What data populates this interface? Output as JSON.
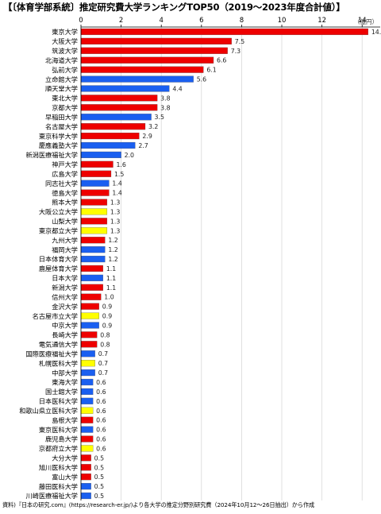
{
  "title": "【〔体育学部系統〕推定研究費大学ランキングTOP50（2019〜2023年度合計値）】",
  "unit": "（億円）",
  "source": "資料)『日本の研究.com』(https://research-er.jp/)より各大学の推定分野別研究費（2024年10月12〜26日抽出）から作成",
  "colors": {
    "national": "#ee0000",
    "private": "#1a5ff0",
    "public": "#ffff00",
    "axis": "#000000",
    "grid": "#d9d9d9"
  },
  "chart_data": {
    "type": "bar",
    "orientation": "horizontal",
    "x_ticks": [
      0,
      2,
      4,
      6,
      8,
      10,
      12,
      14
    ],
    "xlim": [
      0,
      14.9
    ],
    "grid": true,
    "bars": [
      {
        "label": "東京大学",
        "value": 14.3,
        "value_label": "14.3",
        "type": "national"
      },
      {
        "label": "大阪大学",
        "value": 7.5,
        "value_label": "7.5",
        "type": "national"
      },
      {
        "label": "筑波大学",
        "value": 7.3,
        "value_label": "7.3",
        "type": "national"
      },
      {
        "label": "北海道大学",
        "value": 6.6,
        "value_label": "6.6",
        "type": "national"
      },
      {
        "label": "弘前大学",
        "value": 6.1,
        "value_label": "6.1",
        "type": "national"
      },
      {
        "label": "立命館大学",
        "value": 5.6,
        "value_label": "5.6",
        "type": "private"
      },
      {
        "label": "順天堂大学",
        "value": 4.4,
        "value_label": "4.4",
        "type": "private"
      },
      {
        "label": "東北大学",
        "value": 3.8,
        "value_label": "3.8",
        "type": "national"
      },
      {
        "label": "京都大学",
        "value": 3.8,
        "value_label": "3.8",
        "type": "national"
      },
      {
        "label": "早稲田大学",
        "value": 3.5,
        "value_label": "3.5",
        "type": "private"
      },
      {
        "label": "名古屋大学",
        "value": 3.2,
        "value_label": "3.2",
        "type": "national"
      },
      {
        "label": "東京科学大学",
        "value": 2.9,
        "value_label": "2.9",
        "type": "national"
      },
      {
        "label": "慶應義塾大学",
        "value": 2.7,
        "value_label": "2.7",
        "type": "private"
      },
      {
        "label": "新潟医療福祉大学",
        "value": 2.0,
        "value_label": "2.0",
        "type": "private"
      },
      {
        "label": "神戸大学",
        "value": 1.6,
        "value_label": "1.6",
        "type": "national"
      },
      {
        "label": "広島大学",
        "value": 1.5,
        "value_label": "1.5",
        "type": "national"
      },
      {
        "label": "同志社大学",
        "value": 1.4,
        "value_label": "1.4",
        "type": "private"
      },
      {
        "label": "徳島大学",
        "value": 1.4,
        "value_label": "1.4",
        "type": "national"
      },
      {
        "label": "熊本大学",
        "value": 1.3,
        "value_label": "1.3",
        "type": "national"
      },
      {
        "label": "大阪公立大学",
        "value": 1.3,
        "value_label": "1.3",
        "type": "public"
      },
      {
        "label": "山梨大学",
        "value": 1.3,
        "value_label": "1.3",
        "type": "national"
      },
      {
        "label": "東京都立大学",
        "value": 1.3,
        "value_label": "1.3",
        "type": "public"
      },
      {
        "label": "九州大学",
        "value": 1.2,
        "value_label": "1.2",
        "type": "national"
      },
      {
        "label": "福岡大学",
        "value": 1.2,
        "value_label": "1.2",
        "type": "private"
      },
      {
        "label": "日本体育大学",
        "value": 1.2,
        "value_label": "1.2",
        "type": "private"
      },
      {
        "label": "鹿屋体育大学",
        "value": 1.1,
        "value_label": "1.1",
        "type": "national"
      },
      {
        "label": "日本大学",
        "value": 1.1,
        "value_label": "1.1",
        "type": "private"
      },
      {
        "label": "新潟大学",
        "value": 1.1,
        "value_label": "1.1",
        "type": "national"
      },
      {
        "label": "信州大学",
        "value": 1.0,
        "value_label": "1.0",
        "type": "national"
      },
      {
        "label": "金沢大学",
        "value": 0.9,
        "value_label": "0.9",
        "type": "national"
      },
      {
        "label": "名古屋市立大学",
        "value": 0.9,
        "value_label": "0.9",
        "type": "public"
      },
      {
        "label": "中京大学",
        "value": 0.9,
        "value_label": "0.9",
        "type": "private"
      },
      {
        "label": "長崎大学",
        "value": 0.8,
        "value_label": "0.8",
        "type": "national"
      },
      {
        "label": "電気通信大学",
        "value": 0.8,
        "value_label": "0.8",
        "type": "national"
      },
      {
        "label": "国際医療福祉大学",
        "value": 0.7,
        "value_label": "0.7",
        "type": "private"
      },
      {
        "label": "札幌医科大学",
        "value": 0.7,
        "value_label": "0.7",
        "type": "public"
      },
      {
        "label": "中部大学",
        "value": 0.7,
        "value_label": "0.7",
        "type": "private"
      },
      {
        "label": "東海大学",
        "value": 0.6,
        "value_label": "0.6",
        "type": "private"
      },
      {
        "label": "国士舘大学",
        "value": 0.6,
        "value_label": "0.6",
        "type": "private"
      },
      {
        "label": "日本医科大学",
        "value": 0.6,
        "value_label": "0.6",
        "type": "private"
      },
      {
        "label": "和歌山県立医科大学",
        "value": 0.6,
        "value_label": "0.6",
        "type": "public"
      },
      {
        "label": "島根大学",
        "value": 0.6,
        "value_label": "0.6",
        "type": "national"
      },
      {
        "label": "東京医科大学",
        "value": 0.6,
        "value_label": "0.6",
        "type": "private"
      },
      {
        "label": "鹿児島大学",
        "value": 0.6,
        "value_label": "0.6",
        "type": "national"
      },
      {
        "label": "京都府立大学",
        "value": 0.6,
        "value_label": "0.6",
        "type": "public"
      },
      {
        "label": "大分大学",
        "value": 0.5,
        "value_label": "0.5",
        "type": "national"
      },
      {
        "label": "旭川医科大学",
        "value": 0.5,
        "value_label": "0.5",
        "type": "national"
      },
      {
        "label": "富山大学",
        "value": 0.5,
        "value_label": "0.5",
        "type": "national"
      },
      {
        "label": "藤田医科大学",
        "value": 0.5,
        "value_label": "0.5",
        "type": "private"
      },
      {
        "label": "川崎医療福祉大学",
        "value": 0.5,
        "value_label": "0.5",
        "type": "private"
      }
    ]
  }
}
